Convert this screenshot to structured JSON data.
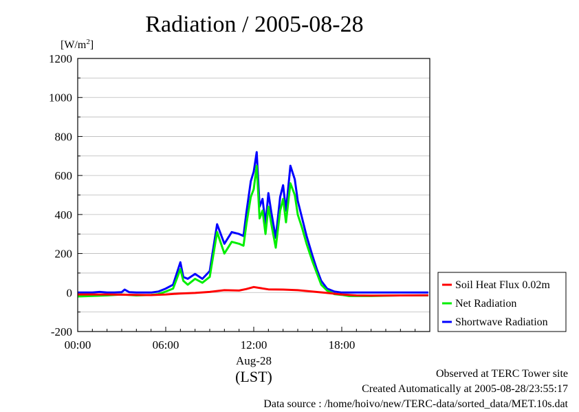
{
  "chart_data": {
    "type": "line",
    "title": "Radiation / 2005-08-28",
    "ylabel": "[W/m²]",
    "ylabel_parts": {
      "base": "[W/m",
      "sup": "2",
      "close": "]"
    },
    "xlabel": "(LST)",
    "xlabel_date": "Aug-28",
    "ylim": [
      -200,
      1200
    ],
    "xlim": [
      0,
      24
    ],
    "yticks": [
      -200,
      0,
      200,
      400,
      600,
      800,
      1000,
      1200
    ],
    "ytick_labels": [
      "-200",
      "0",
      "200",
      "400",
      "600",
      "800",
      "1000",
      "1200"
    ],
    "xticks": [
      0,
      6,
      12,
      18
    ],
    "xtick_labels": [
      "00:00",
      "06:00",
      "12:00",
      "18:00"
    ],
    "grid": true,
    "legend_position": "right",
    "series": [
      {
        "name": "Soil Heat Flux 0.02m",
        "color": "#ff0000",
        "x": [
          0,
          2,
          4,
          5,
          6,
          7,
          8,
          9,
          10,
          11,
          11.5,
          12,
          12.5,
          13,
          14,
          15,
          16,
          17,
          18,
          19,
          20,
          22,
          23.9
        ],
        "values": [
          -10,
          -10,
          -12,
          -13,
          -10,
          -5,
          -2,
          3,
          12,
          10,
          18,
          28,
          22,
          16,
          15,
          12,
          5,
          -2,
          -10,
          -15,
          -16,
          -15,
          -14
        ]
      },
      {
        "name": "Net Radiation",
        "color": "#00ee00",
        "x": [
          0,
          2,
          3,
          4,
          5,
          5.5,
          6,
          6.5,
          7,
          7.2,
          7.5,
          8,
          8.5,
          9,
          9.5,
          10,
          10.5,
          11,
          11.3,
          11.5,
          11.8,
          12,
          12.2,
          12.4,
          12.6,
          12.8,
          13,
          13.2,
          13.5,
          13.8,
          14,
          14.2,
          14.5,
          14.8,
          15,
          15.3,
          15.6,
          16,
          16.3,
          16.6,
          17,
          17.5,
          18,
          18.5,
          20,
          22,
          23.9
        ],
        "values": [
          -20,
          -15,
          -10,
          -15,
          -12,
          -8,
          5,
          20,
          120,
          60,
          40,
          70,
          50,
          80,
          310,
          200,
          260,
          250,
          240,
          350,
          490,
          530,
          650,
          380,
          420,
          300,
          440,
          350,
          230,
          420,
          480,
          360,
          560,
          500,
          400,
          330,
          250,
          160,
          100,
          40,
          10,
          -8,
          -12,
          -18,
          -18,
          -15,
          -15
        ]
      },
      {
        "name": "Shortwave Radiation",
        "color": "#0000ff",
        "x": [
          0,
          1,
          1.5,
          2,
          2.5,
          3,
          3.2,
          3.5,
          4,
          5,
          5.5,
          6,
          6.5,
          7,
          7.2,
          7.5,
          8,
          8.5,
          9,
          9.5,
          10,
          10.5,
          11,
          11.3,
          11.5,
          11.8,
          12,
          12.2,
          12.4,
          12.6,
          12.8,
          13,
          13.2,
          13.5,
          13.8,
          14,
          14.2,
          14.5,
          14.8,
          15,
          15.3,
          15.6,
          16,
          16.3,
          16.6,
          17,
          17.5,
          18,
          18.5,
          20,
          22,
          23.9
        ],
        "values": [
          0,
          0,
          3,
          0,
          0,
          2,
          15,
          2,
          0,
          0,
          5,
          20,
          40,
          155,
          80,
          70,
          95,
          70,
          110,
          350,
          250,
          310,
          300,
          290,
          410,
          570,
          620,
          720,
          440,
          480,
          350,
          510,
          410,
          280,
          490,
          550,
          420,
          650,
          580,
          470,
          380,
          290,
          190,
          120,
          60,
          20,
          5,
          0,
          0,
          0,
          0,
          0
        ]
      }
    ]
  },
  "footer": {
    "line1": "Observed at TERC Tower site",
    "line2": "Created Automatically at 2005-08-28/23:55:17",
    "line3": "Data source : /home/hoivo/new/TERC-data/sorted_data/MET.10s.dat"
  }
}
